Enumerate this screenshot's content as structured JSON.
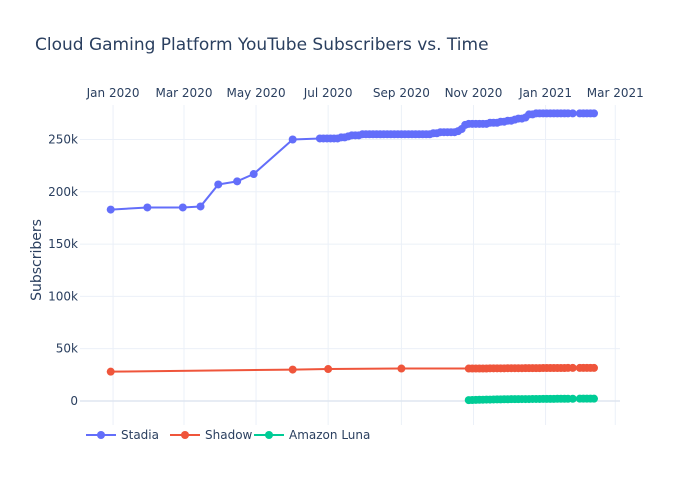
{
  "chart_data": {
    "type": "line",
    "title": "Cloud Gaming Platform YouTube Subscribers vs. Time",
    "xlabel": "",
    "ylabel": "Subscribers",
    "x_axis": {
      "type": "date",
      "position": "top",
      "range": [
        "2019-12-04",
        "2021-03-05"
      ],
      "ticks": [
        {
          "date": "2020-01-01",
          "label": "Jan 2020"
        },
        {
          "date": "2020-03-01",
          "label": "Mar 2020"
        },
        {
          "date": "2020-05-01",
          "label": "May 2020"
        },
        {
          "date": "2020-07-01",
          "label": "Jul 2020"
        },
        {
          "date": "2020-09-01",
          "label": "Sep 2020"
        },
        {
          "date": "2020-11-01",
          "label": "Nov 2020"
        },
        {
          "date": "2021-01-01",
          "label": "Jan 2021"
        },
        {
          "date": "2021-03-01",
          "label": "Mar 2021"
        }
      ]
    },
    "y_axis": {
      "range": [
        -23000,
        283000
      ],
      "ticks": [
        {
          "value": 0,
          "label": "0"
        },
        {
          "value": 50000,
          "label": "50k"
        },
        {
          "value": 100000,
          "label": "100k"
        },
        {
          "value": 150000,
          "label": "150k"
        },
        {
          "value": 200000,
          "label": "200k"
        },
        {
          "value": 250000,
          "label": "250k"
        }
      ]
    },
    "grid": true,
    "legend": {
      "placement": "bottom-left",
      "orientation": "horizontal"
    },
    "series": [
      {
        "name": "Stadia",
        "color": "#636efa",
        "points": [
          [
            "2019-12-30",
            183000
          ],
          [
            "2020-01-30",
            185000
          ],
          [
            "2020-02-29",
            185000
          ],
          [
            "2020-03-15",
            186000
          ],
          [
            "2020-03-30",
            207000
          ],
          [
            "2020-04-15",
            210000
          ],
          [
            "2020-04-29",
            217000
          ],
          [
            "2020-06-01",
            250000
          ],
          [
            "2020-06-24",
            251000
          ],
          [
            "2020-06-27",
            251000
          ],
          [
            "2020-06-30",
            251000
          ],
          [
            "2020-07-03",
            251000
          ],
          [
            "2020-07-06",
            251000
          ],
          [
            "2020-07-09",
            251000
          ],
          [
            "2020-07-12",
            252000
          ],
          [
            "2020-07-15",
            252000
          ],
          [
            "2020-07-18",
            253000
          ],
          [
            "2020-07-21",
            254000
          ],
          [
            "2020-07-24",
            254000
          ],
          [
            "2020-07-27",
            254000
          ],
          [
            "2020-07-30",
            255000
          ],
          [
            "2020-08-02",
            255000
          ],
          [
            "2020-08-05",
            255000
          ],
          [
            "2020-08-08",
            255000
          ],
          [
            "2020-08-11",
            255000
          ],
          [
            "2020-08-14",
            255000
          ],
          [
            "2020-08-17",
            255000
          ],
          [
            "2020-08-20",
            255000
          ],
          [
            "2020-08-23",
            255000
          ],
          [
            "2020-08-26",
            255000
          ],
          [
            "2020-08-29",
            255000
          ],
          [
            "2020-09-01",
            255000
          ],
          [
            "2020-09-04",
            255000
          ],
          [
            "2020-09-07",
            255000
          ],
          [
            "2020-09-10",
            255000
          ],
          [
            "2020-09-13",
            255000
          ],
          [
            "2020-09-16",
            255000
          ],
          [
            "2020-09-19",
            255000
          ],
          [
            "2020-09-22",
            255000
          ],
          [
            "2020-09-25",
            255000
          ],
          [
            "2020-09-28",
            256000
          ],
          [
            "2020-10-01",
            256000
          ],
          [
            "2020-10-04",
            257000
          ],
          [
            "2020-10-07",
            257000
          ],
          [
            "2020-10-10",
            257000
          ],
          [
            "2020-10-13",
            257000
          ],
          [
            "2020-10-16",
            257000
          ],
          [
            "2020-10-19",
            258000
          ],
          [
            "2020-10-22",
            260000
          ],
          [
            "2020-10-25",
            264000
          ],
          [
            "2020-10-28",
            265000
          ],
          [
            "2020-10-31",
            265000
          ],
          [
            "2020-11-03",
            265000
          ],
          [
            "2020-11-06",
            265000
          ],
          [
            "2020-11-09",
            265000
          ],
          [
            "2020-11-12",
            265000
          ],
          [
            "2020-11-15",
            266000
          ],
          [
            "2020-11-18",
            266000
          ],
          [
            "2020-11-21",
            266000
          ],
          [
            "2020-11-24",
            267000
          ],
          [
            "2020-11-27",
            267000
          ],
          [
            "2020-11-30",
            268000
          ],
          [
            "2020-12-03",
            268000
          ],
          [
            "2020-12-06",
            269000
          ],
          [
            "2020-12-09",
            270000
          ],
          [
            "2020-12-12",
            270000
          ],
          [
            "2020-12-15",
            271000
          ],
          [
            "2020-12-18",
            274000
          ],
          [
            "2020-12-21",
            274000
          ],
          [
            "2020-12-24",
            275000
          ],
          [
            "2020-12-27",
            275000
          ],
          [
            "2020-12-30",
            275000
          ],
          [
            "2021-01-02",
            275000
          ],
          [
            "2021-01-05",
            275000
          ],
          [
            "2021-01-08",
            275000
          ],
          [
            "2021-01-11",
            275000
          ],
          [
            "2021-01-14",
            275000
          ],
          [
            "2021-01-17",
            275000
          ],
          [
            "2021-01-20",
            275000
          ],
          [
            "2021-01-24",
            275000
          ],
          [
            "2021-01-30",
            275000
          ],
          [
            "2021-02-02",
            275000
          ],
          [
            "2021-02-05",
            275000
          ],
          [
            "2021-02-08",
            275000
          ],
          [
            "2021-02-11",
            275000
          ]
        ]
      },
      {
        "name": "Shadow",
        "color": "#ef553b",
        "points": [
          [
            "2019-12-30",
            28000
          ],
          [
            "2020-06-01",
            30000
          ],
          [
            "2020-07-01",
            30500
          ],
          [
            "2020-09-01",
            31000
          ],
          [
            "2020-10-28",
            31000
          ],
          [
            "2020-10-31",
            31000
          ],
          [
            "2020-11-03",
            31000
          ],
          [
            "2020-11-06",
            31000
          ],
          [
            "2020-11-09",
            31000
          ],
          [
            "2020-11-12",
            31000
          ],
          [
            "2020-11-15",
            31200
          ],
          [
            "2020-11-18",
            31200
          ],
          [
            "2020-11-21",
            31200
          ],
          [
            "2020-11-24",
            31200
          ],
          [
            "2020-11-27",
            31200
          ],
          [
            "2020-11-30",
            31300
          ],
          [
            "2020-12-03",
            31300
          ],
          [
            "2020-12-06",
            31300
          ],
          [
            "2020-12-09",
            31300
          ],
          [
            "2020-12-12",
            31300
          ],
          [
            "2020-12-15",
            31400
          ],
          [
            "2020-12-18",
            31400
          ],
          [
            "2020-12-21",
            31400
          ],
          [
            "2020-12-24",
            31400
          ],
          [
            "2020-12-27",
            31400
          ],
          [
            "2020-12-30",
            31500
          ],
          [
            "2021-01-02",
            31500
          ],
          [
            "2021-01-05",
            31500
          ],
          [
            "2021-01-08",
            31500
          ],
          [
            "2021-01-11",
            31500
          ],
          [
            "2021-01-14",
            31500
          ],
          [
            "2021-01-17",
            31500
          ],
          [
            "2021-01-20",
            31600
          ],
          [
            "2021-01-24",
            31600
          ],
          [
            "2021-01-30",
            31600
          ],
          [
            "2021-02-02",
            31600
          ],
          [
            "2021-02-05",
            31600
          ],
          [
            "2021-02-08",
            31600
          ],
          [
            "2021-02-11",
            31600
          ]
        ]
      },
      {
        "name": "Amazon Luna",
        "color": "#00cc96",
        "points": [
          [
            "2020-10-28",
            800
          ],
          [
            "2020-10-31",
            900
          ],
          [
            "2020-11-03",
            1000
          ],
          [
            "2020-11-06",
            1100
          ],
          [
            "2020-11-09",
            1200
          ],
          [
            "2020-11-12",
            1300
          ],
          [
            "2020-11-15",
            1300
          ],
          [
            "2020-11-18",
            1400
          ],
          [
            "2020-11-21",
            1500
          ],
          [
            "2020-11-24",
            1500
          ],
          [
            "2020-11-27",
            1600
          ],
          [
            "2020-11-30",
            1600
          ],
          [
            "2020-12-03",
            1700
          ],
          [
            "2020-12-06",
            1700
          ],
          [
            "2020-12-09",
            1700
          ],
          [
            "2020-12-12",
            1800
          ],
          [
            "2020-12-15",
            1800
          ],
          [
            "2020-12-18",
            1800
          ],
          [
            "2020-12-21",
            1900
          ],
          [
            "2020-12-24",
            1900
          ],
          [
            "2020-12-27",
            1900
          ],
          [
            "2020-12-30",
            2000
          ],
          [
            "2021-01-02",
            2000
          ],
          [
            "2021-01-05",
            2000
          ],
          [
            "2021-01-08",
            2000
          ],
          [
            "2021-01-11",
            2100
          ],
          [
            "2021-01-14",
            2100
          ],
          [
            "2021-01-17",
            2100
          ],
          [
            "2021-01-20",
            2100
          ],
          [
            "2021-01-24",
            2100
          ],
          [
            "2021-01-30",
            2200
          ],
          [
            "2021-02-02",
            2200
          ],
          [
            "2021-02-05",
            2200
          ],
          [
            "2021-02-08",
            2200
          ],
          [
            "2021-02-11",
            2200
          ]
        ]
      }
    ]
  }
}
